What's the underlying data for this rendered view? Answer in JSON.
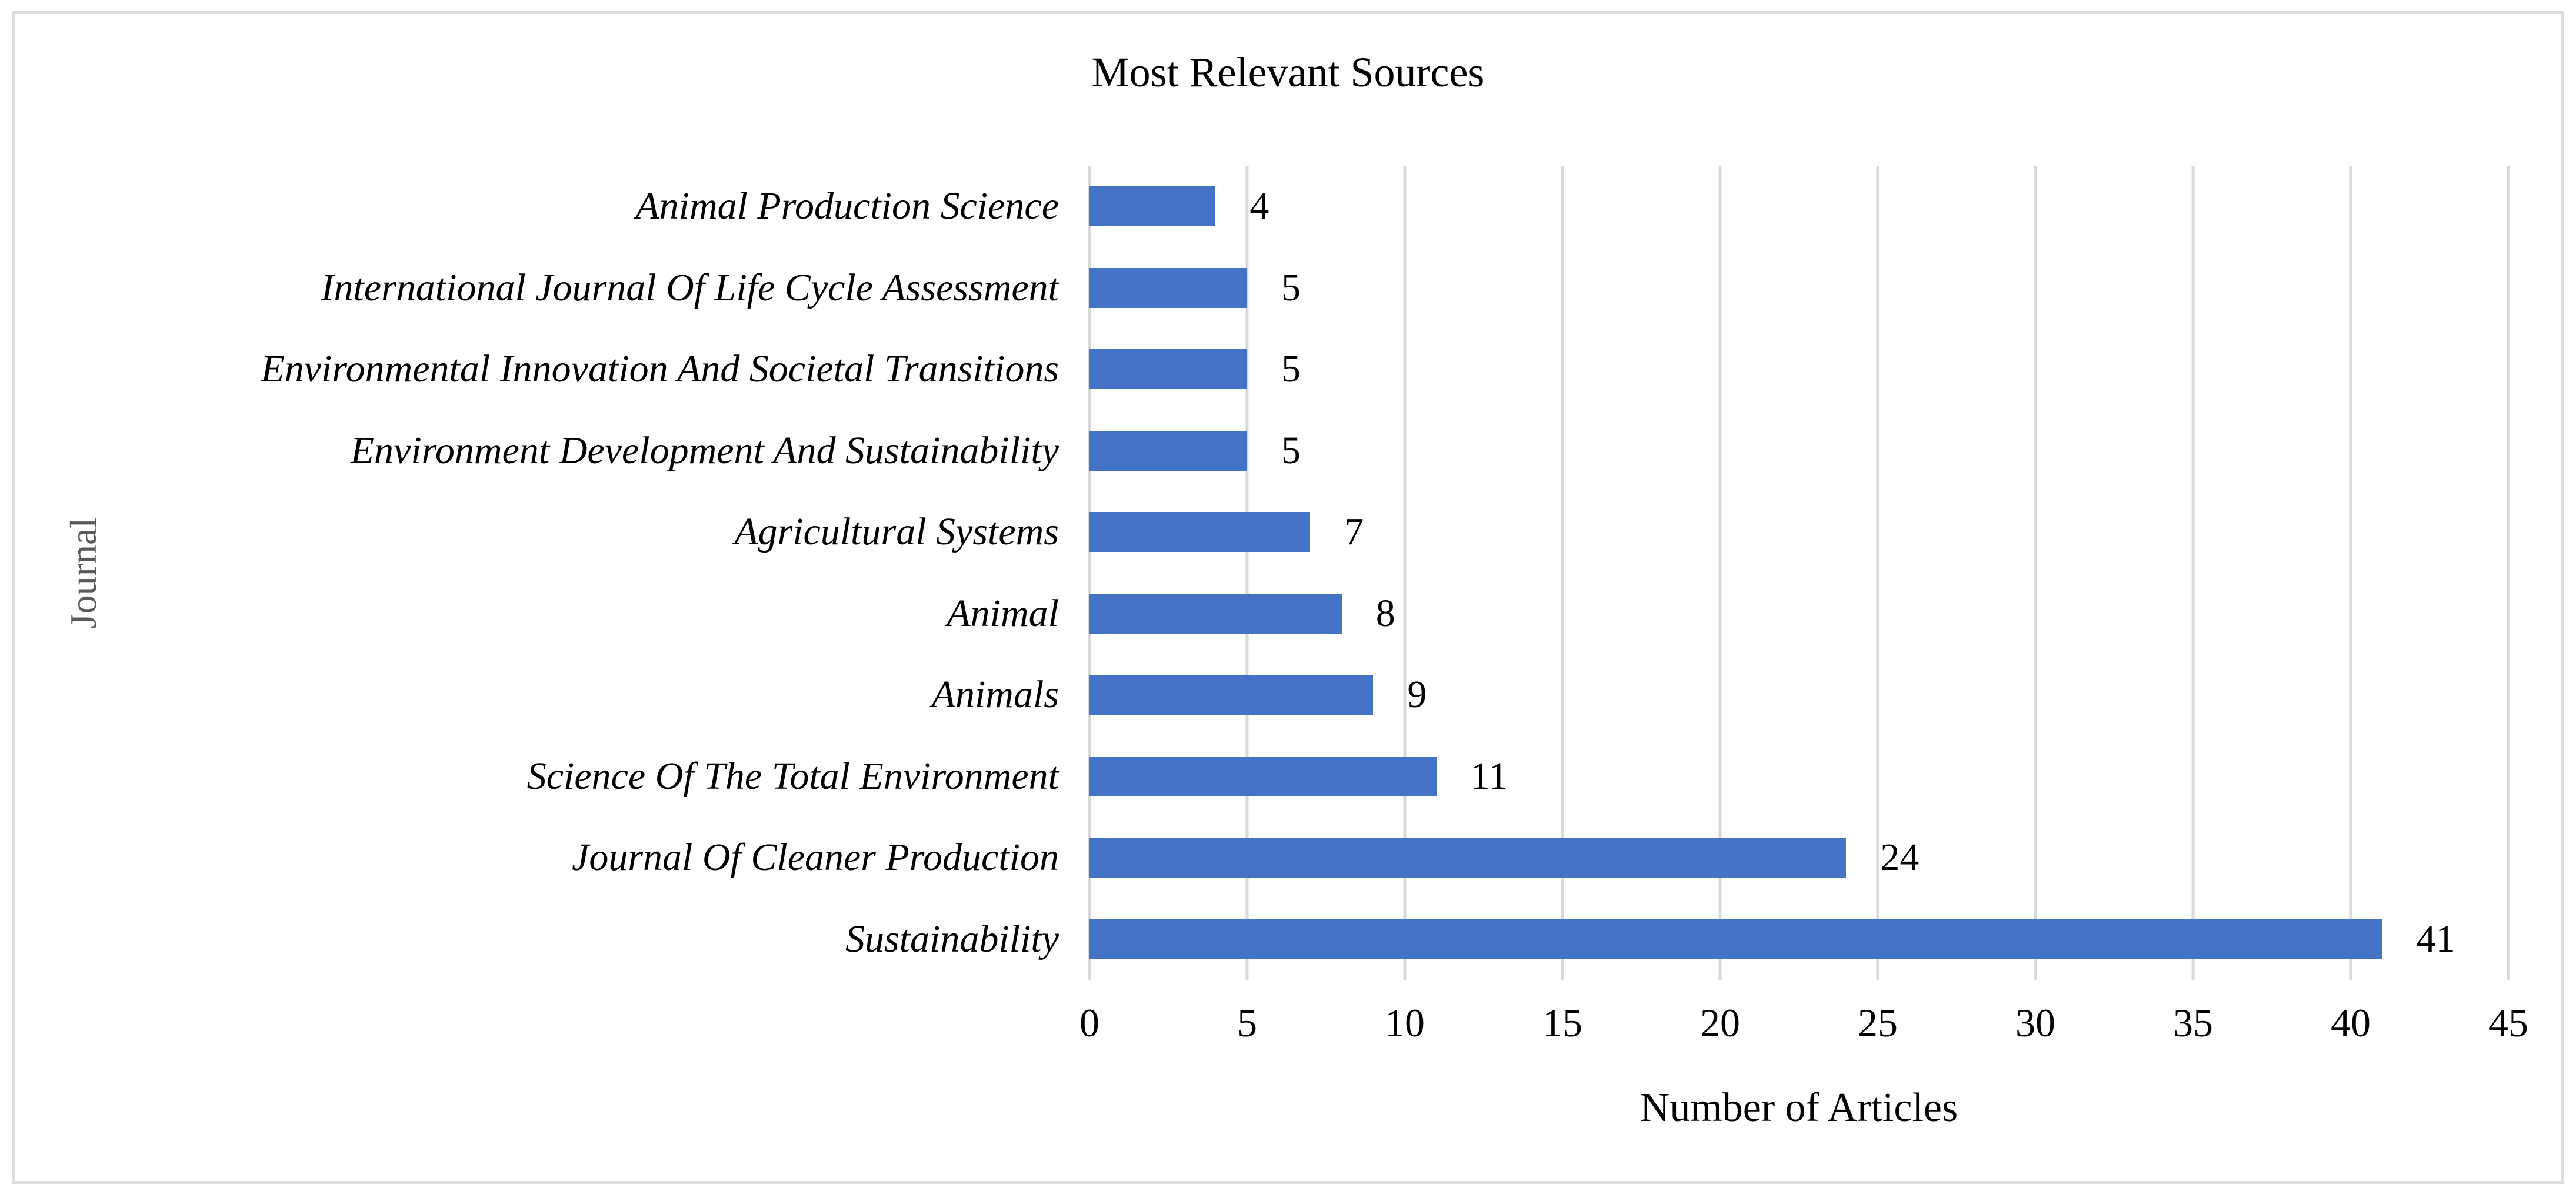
{
  "frame": {
    "border_color": "#dcdcdc",
    "background": "#ffffff"
  },
  "chart_data": {
    "type": "bar",
    "orientation": "horizontal",
    "title": "Most Relevant Sources",
    "xlabel": "Number of Articles",
    "ylabel": "Journal",
    "categories": [
      "Animal Production Science",
      "International Journal Of Life Cycle Assessment",
      "Environmental Innovation And Societal Transitions",
      "Environment Development And Sustainability",
      "Agricultural Systems",
      "Animal",
      "Animals",
      "Science Of The Total Environment",
      "Journal Of Cleaner Production",
      "Sustainability"
    ],
    "values": [
      4,
      5,
      5,
      5,
      7,
      8,
      9,
      11,
      24,
      41
    ],
    "data_labels": [
      "4",
      "5",
      "5",
      "5",
      "7",
      "8",
      "9",
      "11",
      "24",
      "41"
    ],
    "xlim": [
      0,
      45
    ],
    "xticks": [
      0,
      5,
      10,
      15,
      20,
      25,
      30,
      35,
      40,
      45
    ],
    "xtick_labels": [
      "0",
      "5",
      "10",
      "15",
      "20",
      "25",
      "30",
      "35",
      "40",
      "45"
    ],
    "grid": "vertical",
    "legend": "none",
    "bar_color": "#4472c4",
    "gridline_color": "#d9d9d9",
    "axis_title_color": "#595959",
    "text_color": "#000000"
  }
}
